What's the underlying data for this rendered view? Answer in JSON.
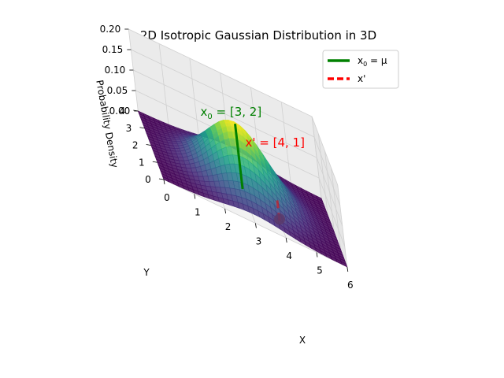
{
  "chart_data": {
    "type": "surface",
    "title": "2D Isotropic Gaussian Distribution in 3D",
    "xlabel": "X",
    "ylabel": "Y",
    "zlabel": "Probability Density",
    "xlim": [
      0,
      6
    ],
    "ylim": [
      0,
      4
    ],
    "zlim": [
      0,
      0.2
    ],
    "x_ticks": [
      "0",
      "1",
      "2",
      "3",
      "4",
      "5",
      "6"
    ],
    "y_ticks": [
      "0",
      "1",
      "2",
      "3",
      "4"
    ],
    "z_ticks": [
      "0.00",
      "0.05",
      "0.10",
      "0.15",
      "0.20"
    ],
    "grid": true,
    "colormap": "viridis",
    "distribution": {
      "mean": [
        3,
        2
      ],
      "sigma": 1.0
    },
    "points": [
      {
        "name": "x0 = μ",
        "legend_base": "x",
        "legend_sub": "0",
        "legend_rest": " = μ",
        "label_base": "x",
        "label_sub": "0",
        "label_rest": " = [3, 2]",
        "x": 3,
        "y": 2,
        "color": "#008000",
        "line_style": "solid"
      },
      {
        "name": "x'",
        "legend_label": "x'",
        "label": "x' = [4, 1]",
        "x": 4,
        "y": 1,
        "color": "#ff0000",
        "line_style": "dashed"
      }
    ],
    "legend_position": "top-right"
  }
}
